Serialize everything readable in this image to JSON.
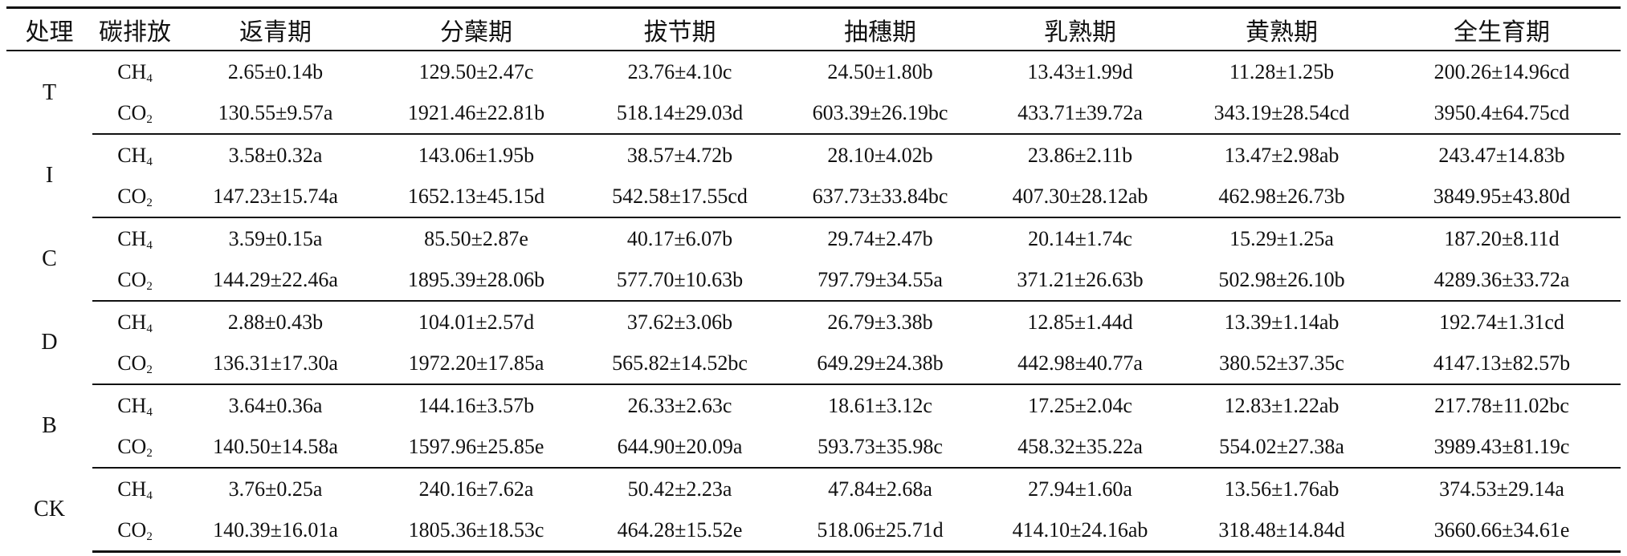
{
  "table": {
    "headers": [
      "处理",
      "碳排放",
      "返青期",
      "分蘖期",
      "拔节期",
      "抽穗期",
      "乳熟期",
      "黄熟期",
      "全生育期"
    ],
    "groups": [
      {
        "treatment": "T",
        "rows": [
          {
            "gas": "CH",
            "sub": "4",
            "values": [
              "2.65±0.14b",
              "129.50±2.47c",
              "23.76±4.10c",
              "24.50±1.80b",
              "13.43±1.99d",
              "11.28±1.25b",
              "200.26±14.96cd"
            ]
          },
          {
            "gas": "CO",
            "sub": "2",
            "values": [
              "130.55±9.57a",
              "1921.46±22.81b",
              "518.14±29.03d",
              "603.39±26.19bc",
              "433.71±39.72a",
              "343.19±28.54cd",
              "3950.4±64.75cd"
            ]
          }
        ]
      },
      {
        "treatment": "I",
        "rows": [
          {
            "gas": "CH",
            "sub": "4",
            "values": [
              "3.58±0.32a",
              "143.06±1.95b",
              "38.57±4.72b",
              "28.10±4.02b",
              "23.86±2.11b",
              "13.47±2.98ab",
              "243.47±14.83b"
            ]
          },
          {
            "gas": "CO",
            "sub": "2",
            "values": [
              "147.23±15.74a",
              "1652.13±45.15d",
              "542.58±17.55cd",
              "637.73±33.84bc",
              "407.30±28.12ab",
              "462.98±26.73b",
              "3849.95±43.80d"
            ]
          }
        ]
      },
      {
        "treatment": "C",
        "rows": [
          {
            "gas": "CH",
            "sub": "4",
            "values": [
              "3.59±0.15a",
              "85.50±2.87e",
              "40.17±6.07b",
              "29.74±2.47b",
              "20.14±1.74c",
              "15.29±1.25a",
              "187.20±8.11d"
            ]
          },
          {
            "gas": "CO",
            "sub": "2",
            "values": [
              "144.29±22.46a",
              "1895.39±28.06b",
              "577.70±10.63b",
              "797.79±34.55a",
              "371.21±26.63b",
              "502.98±26.10b",
              "4289.36±33.72a"
            ]
          }
        ]
      },
      {
        "treatment": "D",
        "rows": [
          {
            "gas": "CH",
            "sub": "4",
            "values": [
              "2.88±0.43b",
              "104.01±2.57d",
              "37.62±3.06b",
              "26.79±3.38b",
              "12.85±1.44d",
              "13.39±1.14ab",
              "192.74±1.31cd"
            ]
          },
          {
            "gas": "CO",
            "sub": "2",
            "values": [
              "136.31±17.30a",
              "1972.20±17.85a",
              "565.82±14.52bc",
              "649.29±24.38b",
              "442.98±40.77a",
              "380.52±37.35c",
              "4147.13±82.57b"
            ]
          }
        ]
      },
      {
        "treatment": "B",
        "rows": [
          {
            "gas": "CH",
            "sub": "4",
            "values": [
              "3.64±0.36a",
              "144.16±3.57b",
              "26.33±2.63c",
              "18.61±3.12c",
              "17.25±2.04c",
              "12.83±1.22ab",
              "217.78±11.02bc"
            ]
          },
          {
            "gas": "CO",
            "sub": "2",
            "values": [
              "140.50±14.58a",
              "1597.96±25.85e",
              "644.90±20.09a",
              "593.73±35.98c",
              "458.32±35.22a",
              "554.02±27.38a",
              "3989.43±81.19c"
            ]
          }
        ]
      },
      {
        "treatment": "CK",
        "rows": [
          {
            "gas": "CH",
            "sub": "4",
            "values": [
              "3.76±0.25a",
              "240.16±7.62a",
              "50.42±2.23a",
              "47.84±2.68a",
              "27.94±1.60a",
              "13.56±1.76ab",
              "374.53±29.14a"
            ]
          },
          {
            "gas": "CO",
            "sub": "2",
            "values": [
              "140.39±16.01a",
              "1805.36±18.53c",
              "464.28±15.52e",
              "518.06±25.71d",
              "414.10±24.16ab",
              "318.48±14.84d",
              "3660.66±34.61e"
            ]
          }
        ]
      }
    ]
  }
}
